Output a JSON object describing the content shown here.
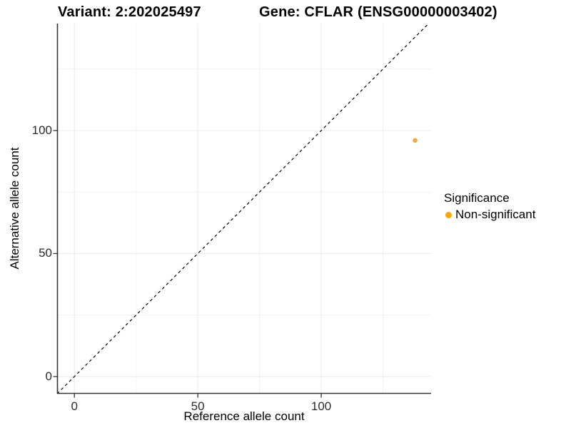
{
  "titles": {
    "variant": "Variant: 2:202025497",
    "gene": "Gene: CFLAR (ENSG00000003402)"
  },
  "chart_data": {
    "type": "scatter",
    "title_left": "Variant: 2:202025497",
    "title_right": "Gene: CFLAR (ENSG00000003402)",
    "xlabel": "Reference allele count",
    "ylabel": "Alternative allele count",
    "xlim": [
      -7,
      144.5
    ],
    "ylim": [
      -7,
      143.5
    ],
    "x_ticks": [
      0,
      50,
      100
    ],
    "y_ticks": [
      0,
      50,
      100
    ],
    "x_minor_gridlines": [
      25,
      75,
      125
    ],
    "y_minor_gridlines": [
      25,
      75,
      125
    ],
    "grid": true,
    "identity_line": {
      "style": "dashed",
      "from": -7,
      "to": 143.5,
      "color": "#000000",
      "meaning": "y = x diagonal"
    },
    "legend": {
      "title": "Significance",
      "position": "right",
      "items": [
        {
          "label": "Non-significant",
          "color": "#FFA500"
        }
      ]
    },
    "series": [
      {
        "name": "Non-significant",
        "color": "#FAA43F",
        "points": [
          {
            "x": 138,
            "y": 96
          }
        ]
      }
    ]
  },
  "colors": {
    "background": "#FFFFFF",
    "grid_major": "#ECECEC",
    "grid_minor": "#F1F1F1",
    "axis_line": "#333333",
    "tick_mark": "#333333",
    "point_orange": "#FAA43F",
    "legend_orange": "#FFA500"
  }
}
